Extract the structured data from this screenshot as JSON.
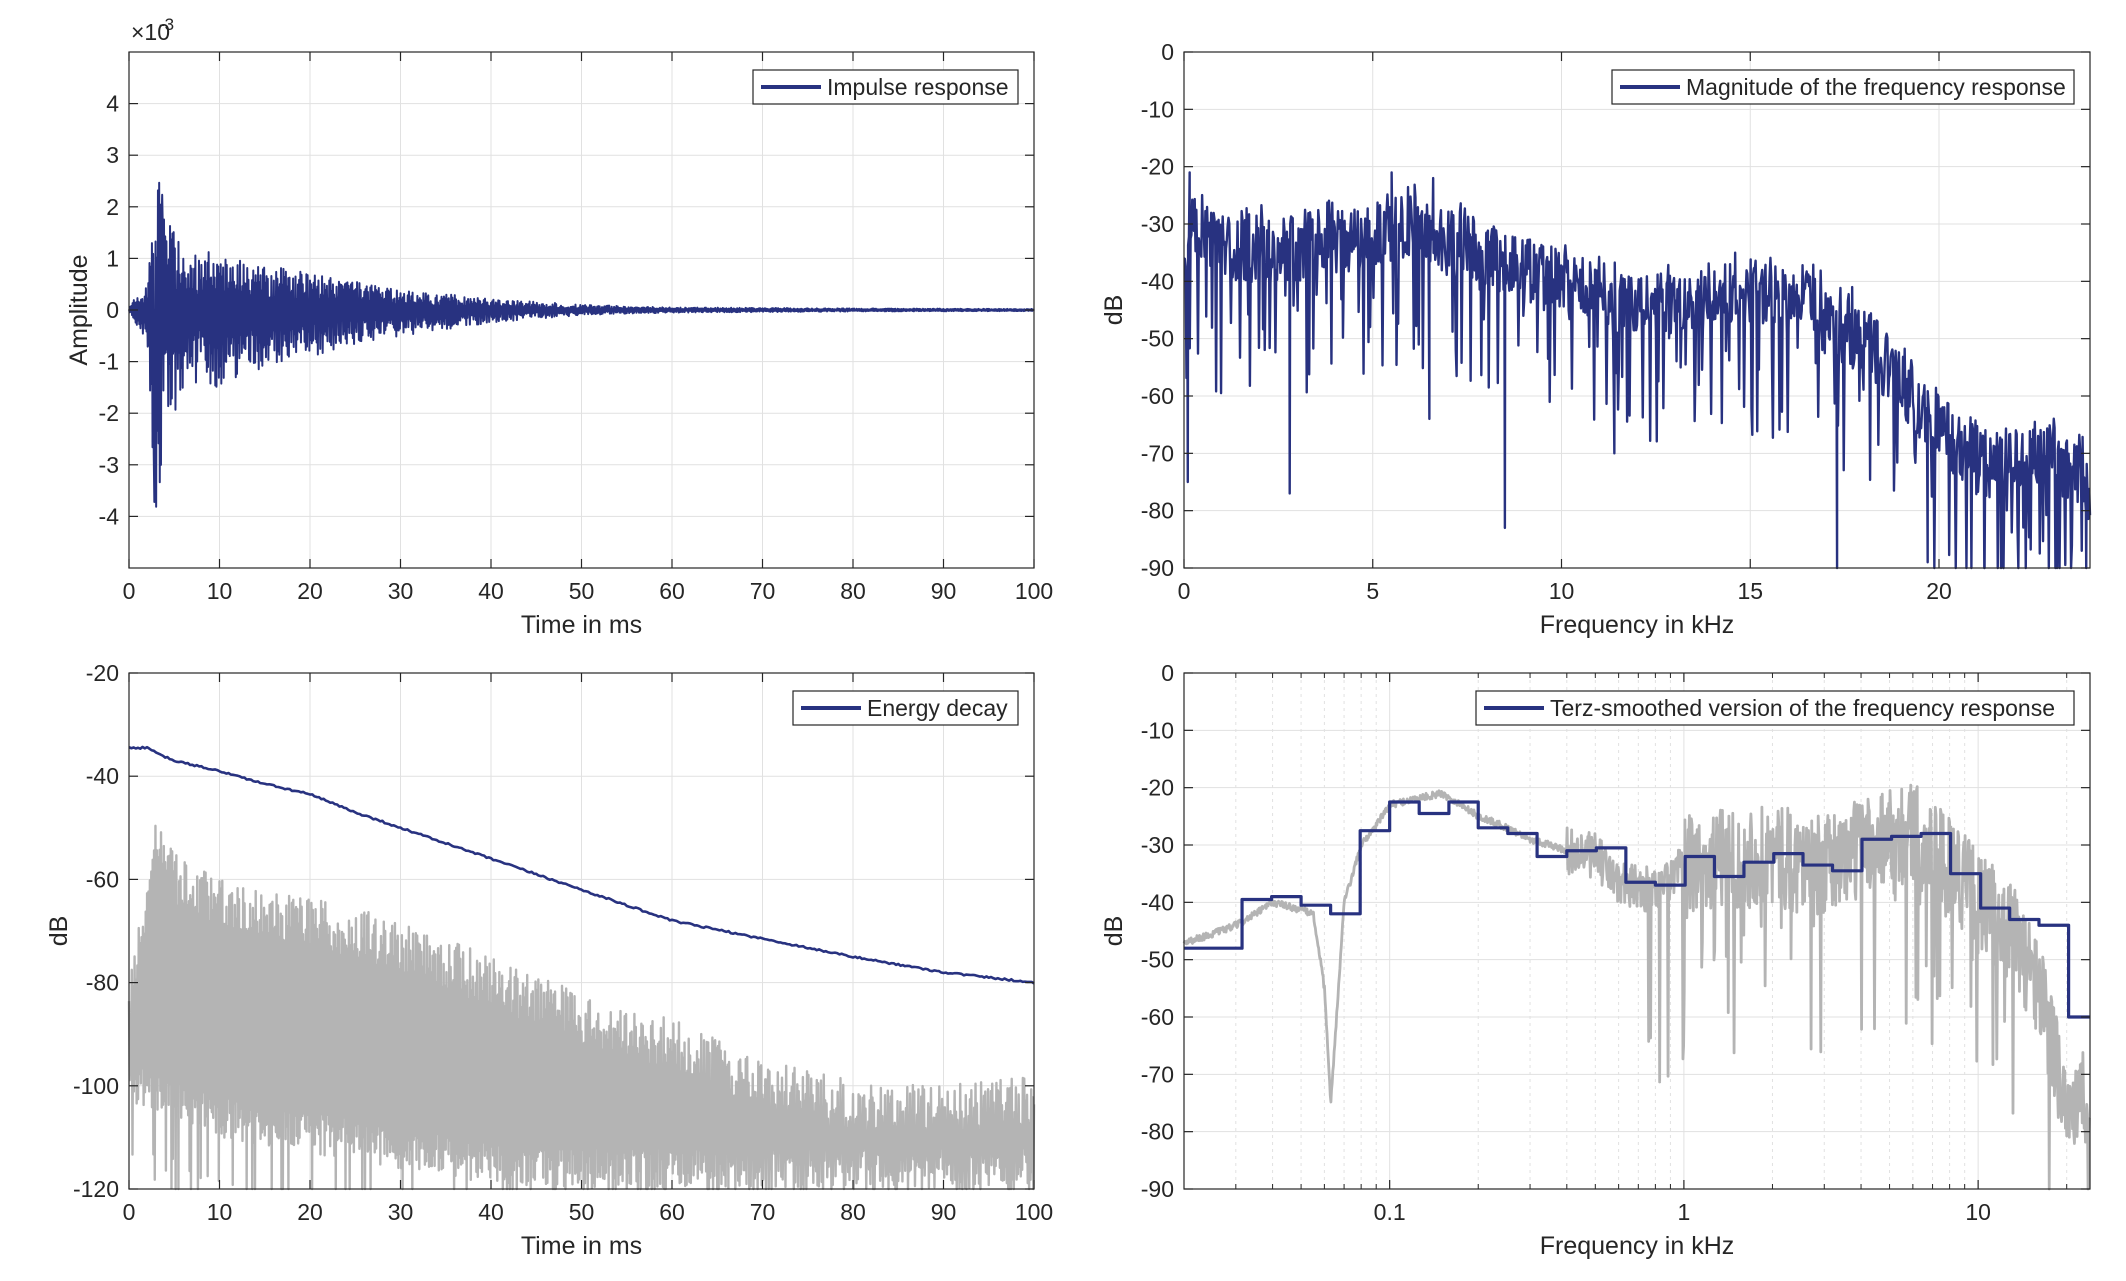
{
  "colors": {
    "series": "#283280",
    "gray": "#b4b4b4",
    "grid": "#e1e1e1",
    "axis": "#262626",
    "background": "#ffffff"
  },
  "chart_data": [
    {
      "id": "impulse",
      "type": "line",
      "title": "",
      "xlabel": "Time in ms",
      "ylabel": "Amplitude",
      "exponent_label": "×10",
      "exponent_value": "-3",
      "xlim": [
        0,
        100
      ],
      "ylim": [
        -5,
        5
      ],
      "xticks": [
        0,
        10,
        20,
        30,
        40,
        50,
        60,
        70,
        80,
        90,
        100
      ],
      "xtick_labels": [
        "0",
        "10",
        "20",
        "30",
        "40",
        "50",
        "60",
        "70",
        "80",
        "90",
        "100"
      ],
      "yticks": [
        -4,
        -3,
        -2,
        -1,
        0,
        1,
        2,
        3,
        4
      ],
      "ytick_labels": [
        "-4",
        "-3",
        "-2",
        "-1",
        "0",
        "1",
        "2",
        "3",
        "4"
      ],
      "grid": true,
      "legend_position": "top-right",
      "series": [
        {
          "name": "Impulse response",
          "color": "#283280",
          "note": "amplitude in units of 1e-3; oscillating decaying signal",
          "envelope": {
            "t": [
              0,
              2,
              3,
              4,
              6,
              10,
              15,
              20,
              30,
              40,
              50,
              60,
              80,
              100
            ],
            "pos": [
              0.05,
              0.6,
              2.7,
              2.0,
              1.2,
              1.1,
              0.9,
              0.7,
              0.4,
              0.22,
              0.1,
              0.05,
              0.03,
              0.02
            ],
            "neg": [
              -0.05,
              -0.6,
              -4.5,
              -2.5,
              -1.5,
              -1.5,
              -1.1,
              -0.9,
              -0.5,
              -0.25,
              -0.1,
              -0.05,
              -0.03,
              -0.02
            ]
          }
        }
      ]
    },
    {
      "id": "magnitude",
      "type": "line",
      "title": "",
      "xlabel": "Frequency in kHz",
      "ylabel": "dB",
      "xlim": [
        0,
        24
      ],
      "ylim": [
        -90,
        0
      ],
      "xticks": [
        0,
        5,
        10,
        15,
        20
      ],
      "xtick_labels": [
        "0",
        "5",
        "10",
        "15",
        "20"
      ],
      "yticks": [
        0,
        -10,
        -20,
        -30,
        -40,
        -50,
        -60,
        -70,
        -80,
        -90
      ],
      "ytick_labels": [
        "0",
        "-10",
        "-20",
        "-30",
        "-40",
        "-50",
        "-60",
        "-70",
        "-80",
        "-90"
      ],
      "grid": true,
      "legend_position": "top-right",
      "series": [
        {
          "name": "Magnitude of the frequency response",
          "color": "#283280",
          "trend": {
            "f": [
              0,
              0.2,
              1,
              3,
              5,
              6,
              7,
              8,
              9,
              10,
              11,
              12,
              13,
              14,
              15,
              16,
              16.5,
              17,
              18,
              19,
              20,
              21,
              22,
              23,
              24
            ],
            "db": [
              -40,
              -30,
              -35,
              -34,
              -32,
              -30,
              -33,
              -36,
              -38,
              -40,
              -43,
              -45,
              -44,
              -43,
              -42,
              -44,
              -40,
              -48,
              -50,
              -58,
              -66,
              -72,
              -71,
              -71,
              -76
            ]
          },
          "dips": [
            {
              "f": 0.1,
              "db": -75
            },
            {
              "f": 2.8,
              "db": -77
            },
            {
              "f": 6.5,
              "db": -64
            },
            {
              "f": 8.5,
              "db": -83
            },
            {
              "f": 11.4,
              "db": -70
            },
            {
              "f": 17.3,
              "db": -90
            },
            {
              "f": 19.7,
              "db": -89
            },
            {
              "f": 21.2,
              "db": -90
            },
            {
              "f": 23.9,
              "db": -90
            }
          ],
          "peaks": [
            {
              "f": 0.15,
              "db": -21
            },
            {
              "f": 5.5,
              "db": -21
            },
            {
              "f": 6.6,
              "db": -22
            },
            {
              "f": 14.6,
              "db": -35
            },
            {
              "f": 17.7,
              "db": -41
            }
          ]
        }
      ]
    },
    {
      "id": "energy",
      "type": "line",
      "title": "",
      "xlabel": "Time in ms",
      "ylabel": "dB",
      "xlim": [
        0,
        100
      ],
      "ylim": [
        -120,
        -20
      ],
      "xticks": [
        0,
        10,
        20,
        30,
        40,
        50,
        60,
        70,
        80,
        90,
        100
      ],
      "xtick_labels": [
        "0",
        "10",
        "20",
        "30",
        "40",
        "50",
        "60",
        "70",
        "80",
        "90",
        "100"
      ],
      "yticks": [
        -20,
        -40,
        -60,
        -80,
        -100,
        -120
      ],
      "ytick_labels": [
        "-20",
        "-40",
        "-60",
        "-80",
        "-100",
        "-120"
      ],
      "grid": true,
      "legend_position": "top-right",
      "series": [
        {
          "name": "Energy decay",
          "color": "#283280",
          "x": [
            0,
            2,
            3,
            5,
            10,
            15,
            20,
            25,
            30,
            40,
            50,
            60,
            70,
            80,
            90,
            100
          ],
          "y": [
            -34.5,
            -34.5,
            -35.5,
            -37,
            -39,
            -41.5,
            -43.5,
            -47,
            -50,
            -56,
            -62,
            -68,
            -71.5,
            -75,
            -78,
            -80
          ]
        },
        {
          "color": "#b4b4b4",
          "envelope": {
            "t": [
              0,
              2,
              3,
              5,
              10,
              20,
              30,
              40,
              50,
              60,
              70,
              80,
              90,
              100
            ],
            "top": [
              -80,
              -58,
              -47,
              -55,
              -60,
              -63,
              -68,
              -75,
              -82,
              -87,
              -95,
              -99,
              -100,
              -98
            ],
            "floor": [
              -103,
              -105,
              -105,
              -107,
              -110,
              -113,
              -116,
              -119,
              -120,
              -120,
              -120,
              -120,
              -120,
              -120
            ]
          }
        }
      ]
    },
    {
      "id": "terz",
      "type": "line",
      "title": "",
      "xlabel": "Frequency in kHz",
      "ylabel": "dB",
      "xscale": "log",
      "xlim": [
        0.02,
        24
      ],
      "ylim": [
        -90,
        0
      ],
      "xticks": [
        0.1,
        1,
        10
      ],
      "xtick_labels": [
        "0.1",
        "1",
        "10"
      ],
      "yticks": [
        0,
        -10,
        -20,
        -30,
        -40,
        -50,
        -60,
        -70,
        -80,
        -90
      ],
      "ytick_labels": [
        "0",
        "-10",
        "-20",
        "-30",
        "-40",
        "-50",
        "-60",
        "-70",
        "-80",
        "-90"
      ],
      "grid": true,
      "legend_position": "top-right",
      "series": [
        {
          "name": "Terz-smoothed version of the frequency response",
          "color": "#283280",
          "x": [
            0.02,
            0.0315,
            0.0397,
            0.05,
            0.063,
            0.0794,
            0.1,
            0.126,
            0.159,
            0.2,
            0.252,
            0.317,
            0.4,
            0.504,
            0.635,
            0.8,
            1.01,
            1.27,
            1.6,
            2.02,
            2.54,
            3.2,
            4.03,
            5.08,
            6.4,
            8.06,
            10.2,
            12.8,
            16.1,
            20.3,
            24
          ],
          "y": [
            -48,
            -39.5,
            -39,
            -40.5,
            -42,
            -27.5,
            -22.5,
            -24.5,
            -22.5,
            -27,
            -28,
            -32,
            -31,
            -30.5,
            -36.5,
            -37,
            -32,
            -35.5,
            -33,
            -31.5,
            -33.5,
            -34.5,
            -29,
            -28.5,
            -28,
            -35,
            -41,
            -43,
            -44,
            -60,
            -60
          ]
        },
        {
          "color": "#b4b4b4",
          "trend": {
            "f": [
              0.02,
              0.03,
              0.04,
              0.055,
              0.06,
              0.063,
              0.07,
              0.08,
              0.1,
              0.12,
              0.15,
              0.2,
              0.3,
              0.4,
              0.5,
              0.6,
              0.8,
              1,
              1.5,
              2,
              3,
              4,
              5,
              6,
              8,
              10,
              13,
              16,
              20,
              24
            ],
            "db": [
              -47,
              -44,
              -40,
              -42,
              -55,
              -75,
              -40,
              -30,
              -23,
              -22,
              -21,
              -25,
              -29,
              -31,
              -32,
              -37,
              -38,
              -34,
              -32,
              -32,
              -34,
              -30,
              -28,
              -28,
              -33,
              -40,
              -45,
              -55,
              -75,
              -75
            ]
          }
        }
      ]
    }
  ]
}
